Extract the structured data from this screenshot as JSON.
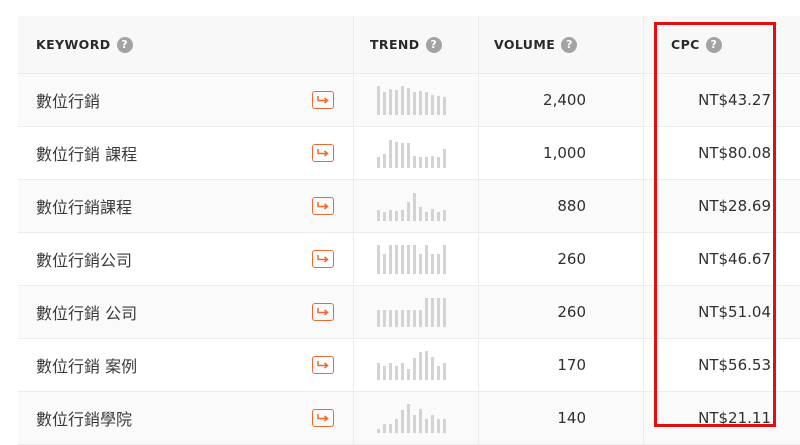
{
  "header": {
    "keyword_label": "KEYWORD",
    "trend_label": "TREND",
    "volume_label": "VOLUME",
    "cpc_label": "CPC",
    "help_glyph": "?"
  },
  "rows": [
    {
      "keyword": "數位行銷",
      "volume": "2,400",
      "cpc": "NT$43.27",
      "trend": [
        0.95,
        0.78,
        0.88,
        0.82,
        0.95,
        0.9,
        0.78,
        0.8,
        0.75,
        0.68,
        0.62,
        0.6
      ]
    },
    {
      "keyword": "數位行銷 課程",
      "volume": "1,000",
      "cpc": "NT$80.08",
      "trend": [
        0.38,
        0.48,
        0.92,
        0.85,
        0.82,
        0.82,
        0.4,
        0.35,
        0.35,
        0.4,
        0.35,
        0.62
      ]
    },
    {
      "keyword": "數位行銷課程",
      "volume": "880",
      "cpc": "NT$28.69",
      "trend": [
        0.38,
        0.3,
        0.38,
        0.32,
        0.38,
        0.62,
        0.92,
        0.48,
        0.3,
        0.4,
        0.3,
        0.38
      ]
    },
    {
      "keyword": "數位行銷公司",
      "volume": "260",
      "cpc": "NT$46.67",
      "trend": [
        0.95,
        0.65,
        0.95,
        0.95,
        0.95,
        0.95,
        0.95,
        0.65,
        0.95,
        0.65,
        0.65,
        0.95
      ]
    },
    {
      "keyword": "數位行銷 公司",
      "volume": "260",
      "cpc": "NT$51.04",
      "trend": [
        0.55,
        0.55,
        0.55,
        0.55,
        0.55,
        0.55,
        0.55,
        0.55,
        0.95,
        0.95,
        0.95,
        0.95
      ]
    },
    {
      "keyword": "數位行銷 案例",
      "volume": "170",
      "cpc": "NT$56.53",
      "trend": [
        0.55,
        0.45,
        0.55,
        0.45,
        0.55,
        0.38,
        0.72,
        0.92,
        0.95,
        0.75,
        0.45,
        0.55
      ]
    },
    {
      "keyword": "數位行銷學院",
      "volume": "140",
      "cpc": "NT$21.11",
      "trend": [
        0.12,
        0.3,
        0.3,
        0.45,
        0.78,
        0.95,
        0.6,
        0.8,
        0.45,
        0.6,
        0.45,
        0.45
      ]
    }
  ],
  "colors": {
    "accent": "#e86a33",
    "highlight": "#e01010",
    "trend_bar": "#d3d3d3"
  }
}
